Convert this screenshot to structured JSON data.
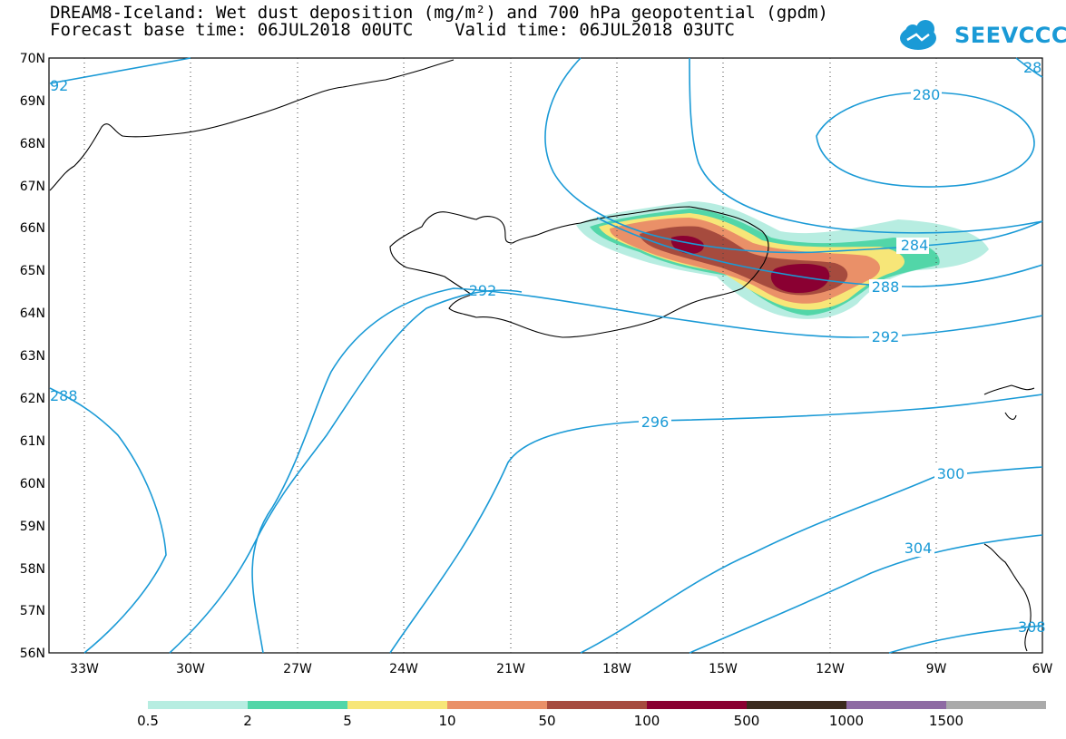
{
  "header": {
    "title_line1": "DREAM8-Iceland: Wet dust deposition (mg/m²) and 700 hPa geopotential (gpdm)",
    "title_line2": "Forecast base time: 06JUL2018 00UTC    Valid time: 06JUL2018 03UTC"
  },
  "logo": {
    "text": "SEEVCCC",
    "color": "#1a9ad6"
  },
  "map": {
    "lat_labels": [
      "70N",
      "69N",
      "68N",
      "67N",
      "66N",
      "65N",
      "64N",
      "63N",
      "62N",
      "61N",
      "60N",
      "59N",
      "58N",
      "57N",
      "56N"
    ],
    "lon_labels": [
      "33W",
      "30W",
      "27W",
      "24W",
      "21W",
      "18W",
      "15W",
      "12W",
      "9W",
      "6W"
    ],
    "contour_color": "#1a9ad6",
    "contour_labels": [
      "28",
      "280",
      "284",
      "288",
      "292",
      "292",
      "296",
      "300",
      "304",
      "308",
      "288",
      "92"
    ],
    "grid": "dotted"
  },
  "legend": {
    "colors": [
      "#b7ede1",
      "#52d6a8",
      "#f7e678",
      "#ea9068",
      "#a64b3e",
      "#8a0032",
      "#3b2a1e",
      "#8e6aa3",
      "#aaaaaa"
    ],
    "labels": [
      "0.5",
      "2",
      "5",
      "10",
      "50",
      "100",
      "500",
      "1000",
      "1500"
    ]
  }
}
